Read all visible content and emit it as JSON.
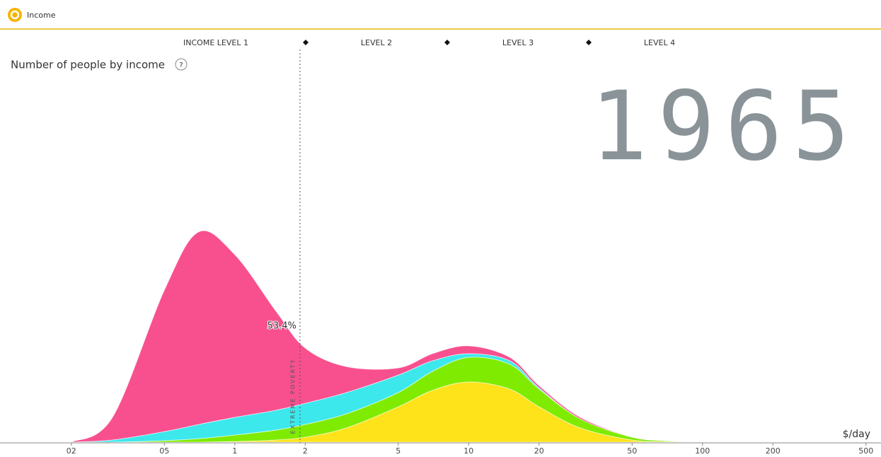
{
  "header": {
    "title": "Income"
  },
  "chart_data": {
    "type": "stacked-area",
    "title": "Number of people by income",
    "year": "1965",
    "levels": [
      "INCOME LEVEL 1",
      "LEVEL 2",
      "LEVEL 3",
      "LEVEL 4"
    ],
    "poverty_label": "EXTREME POVERTY",
    "poverty_line": 1.9,
    "poverty_share": "53.4%",
    "xlabel": "$/day",
    "xscale": "log",
    "xlim": [
      0.11,
      560
    ],
    "xticks": [
      {
        "value": 0.2,
        "label": "02"
      },
      {
        "value": 0.5,
        "label": "05"
      },
      1,
      2,
      5,
      10,
      20,
      50,
      100,
      200,
      500
    ],
    "ylim": [
      0,
      100
    ],
    "x": [
      0.2,
      0.3,
      0.5,
      0.7,
      1,
      1.5,
      2,
      3,
      5,
      7,
      10,
      15,
      20,
      30,
      50,
      70,
      100
    ],
    "series": [
      {
        "color": "#ffe31a",
        "values": [
          0,
          0,
          0,
          0,
          0.3,
          1,
          2.3,
          6.6,
          16.4,
          24,
          27.9,
          24.6,
          16.4,
          6.6,
          1,
          0.3,
          0
        ]
      },
      {
        "color": "#7feb00",
        "values": [
          0,
          0,
          0.7,
          1.6,
          3,
          4.6,
          5.9,
          6.5,
          6.6,
          8.8,
          11.4,
          11.5,
          8.2,
          4.2,
          1.3,
          0.4,
          0
        ]
      },
      {
        "color": "#3de8ec",
        "values": [
          0,
          1,
          4.2,
          6.6,
          8.2,
          9.2,
          9.8,
          9.9,
          8.1,
          4.9,
          1.7,
          1.6,
          0.6,
          0,
          0,
          0,
          0
        ]
      },
      {
        "color": "#f8508f",
        "values": [
          0,
          10.5,
          65.6,
          89.2,
          75.4,
          45.9,
          25.6,
          12,
          3.3,
          3.3,
          3.6,
          1.6,
          1,
          0.7,
          0,
          0,
          0
        ]
      }
    ]
  }
}
